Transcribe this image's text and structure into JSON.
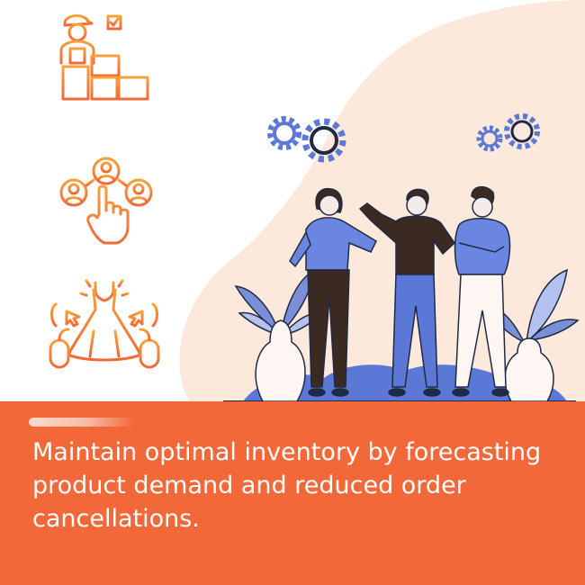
{
  "icons": [
    {
      "name": "inventory-worker-checklist-icon"
    },
    {
      "name": "customer-selection-hand-icon"
    },
    {
      "name": "dress-product-click-icon"
    }
  ],
  "illustration": {
    "name": "team-discussion-illustration",
    "colors": {
      "blob": "#fde8dc",
      "gear": "#5b78d6",
      "shirt_blue": "#6b86e0",
      "dark": "#3b2a22",
      "plant": "#7a8fd8"
    }
  },
  "banner": {
    "caption": "Maintain optimal inventory by forecasting product demand and reduced order cancellations.",
    "background": "#f26839"
  },
  "colors": {
    "icon_orange": "#f26839",
    "icon_amber": "#f7a23a"
  }
}
